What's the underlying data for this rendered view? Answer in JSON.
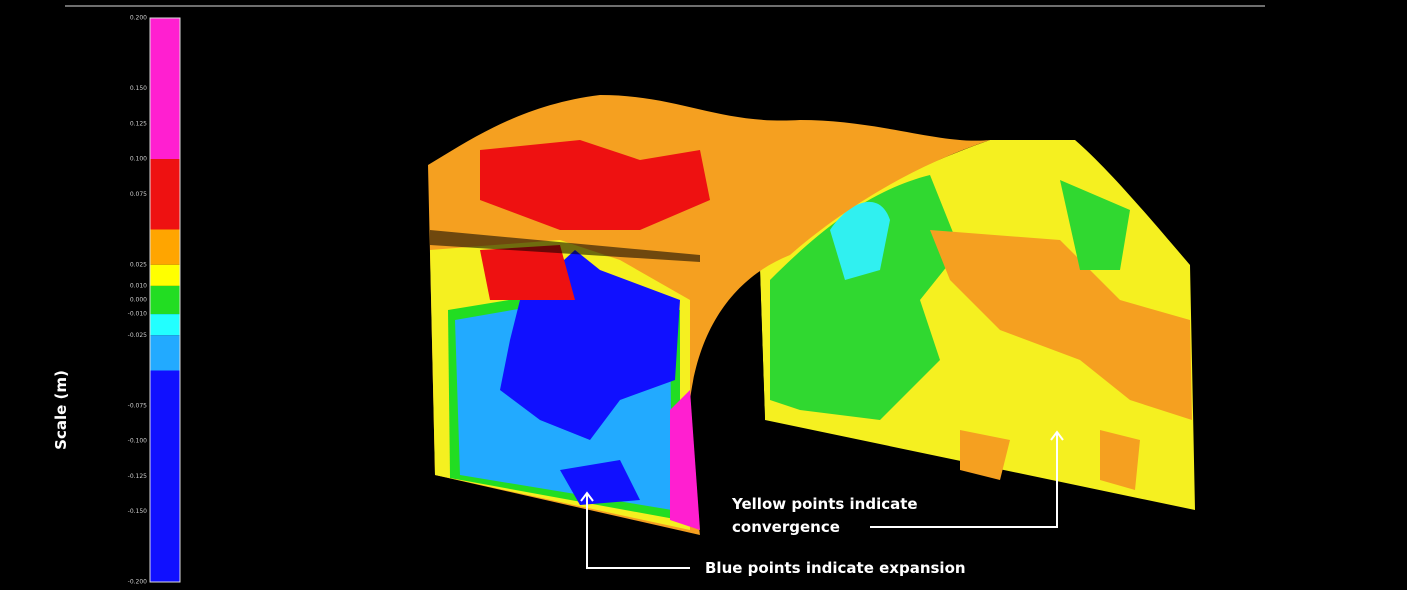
{
  "colorbar": {
    "label": "Scale (m)",
    "range": [
      -0.2,
      0.2
    ],
    "ticks": [
      {
        "value": 0.2,
        "label": "0.200"
      },
      {
        "value": 0.15,
        "label": "0.150"
      },
      {
        "value": 0.125,
        "label": "0.125"
      },
      {
        "value": 0.1,
        "label": "0.100"
      },
      {
        "value": 0.075,
        "label": "0.075"
      },
      {
        "value": 0.025,
        "label": "0.025"
      },
      {
        "value": 0.01,
        "label": "0.010"
      },
      {
        "value": 0,
        "label": "0.000"
      },
      {
        "value": -0.01,
        "label": "-0.010"
      },
      {
        "value": -0.025,
        "label": "-0.025"
      },
      {
        "value": -0.075,
        "label": "-0.075"
      },
      {
        "value": -0.1,
        "label": "-0.100"
      },
      {
        "value": -0.125,
        "label": "-0.125"
      },
      {
        "value": -0.15,
        "label": "-0.150"
      },
      {
        "value": -0.2,
        "label": "-0.200"
      }
    ],
    "segments": [
      {
        "from": 0.1,
        "to": 0.2,
        "color": "#ff1fd0"
      },
      {
        "from": 0.05,
        "to": 0.1,
        "color": "#ee1111"
      },
      {
        "from": 0.025,
        "to": 0.05,
        "color": "#ffa500"
      },
      {
        "from": 0.01,
        "to": 0.025,
        "color": "#ffff00"
      },
      {
        "from": -0.01,
        "to": 0.01,
        "color": "#22dd22"
      },
      {
        "from": -0.025,
        "to": -0.01,
        "color": "#22ffff"
      },
      {
        "from": -0.05,
        "to": -0.025,
        "color": "#22aaff"
      },
      {
        "from": -0.2,
        "to": -0.05,
        "color": "#1010ff"
      }
    ]
  },
  "annotations": {
    "convergence": [
      "Yellow points indicate",
      "convergence"
    ],
    "expansion": "Blue points indicate expansion"
  }
}
